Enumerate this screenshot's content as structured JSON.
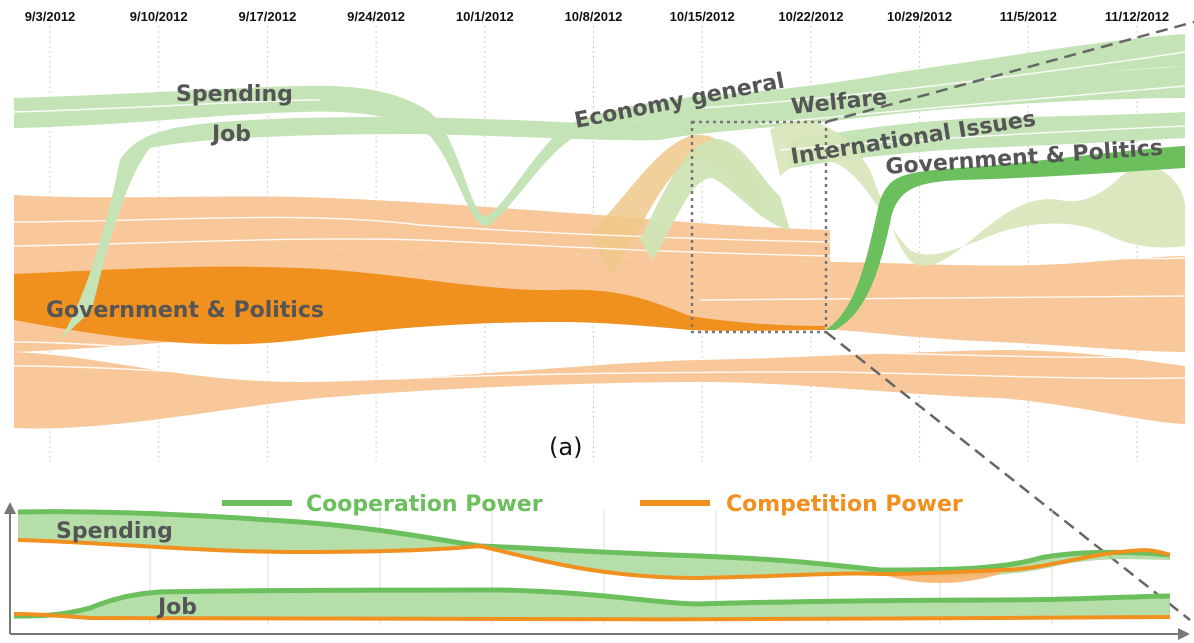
{
  "chart_data": [
    {
      "type": "area",
      "caption": "(a)",
      "x": [
        "9/3/2012",
        "9/10/2012",
        "9/17/2012",
        "9/24/2012",
        "10/1/2012",
        "10/8/2012",
        "10/15/2012",
        "10/22/2012",
        "10/29/2012",
        "11/5/2012",
        "11/12/2012"
      ],
      "labels": {
        "spending": "Spending",
        "job": "Job",
        "economy": "Economy general",
        "welfare": "Welfare",
        "international": "International Issues",
        "gov_green": "Government & Politics",
        "gov_orange": "Government & Politics"
      },
      "colors": {
        "cooperation": "#6cbf5d",
        "competition": "#f0901f",
        "cooperation_light": "#c4e3b6",
        "competition_light": "#f9c89a"
      }
    },
    {
      "type": "line",
      "legend": [
        {
          "name": "Cooperation Power",
          "color": "#6cbf5d"
        },
        {
          "name": "Competition Power",
          "color": "#f0901f"
        }
      ],
      "series_labels": {
        "spending": "Spending",
        "job": "Job"
      }
    }
  ]
}
